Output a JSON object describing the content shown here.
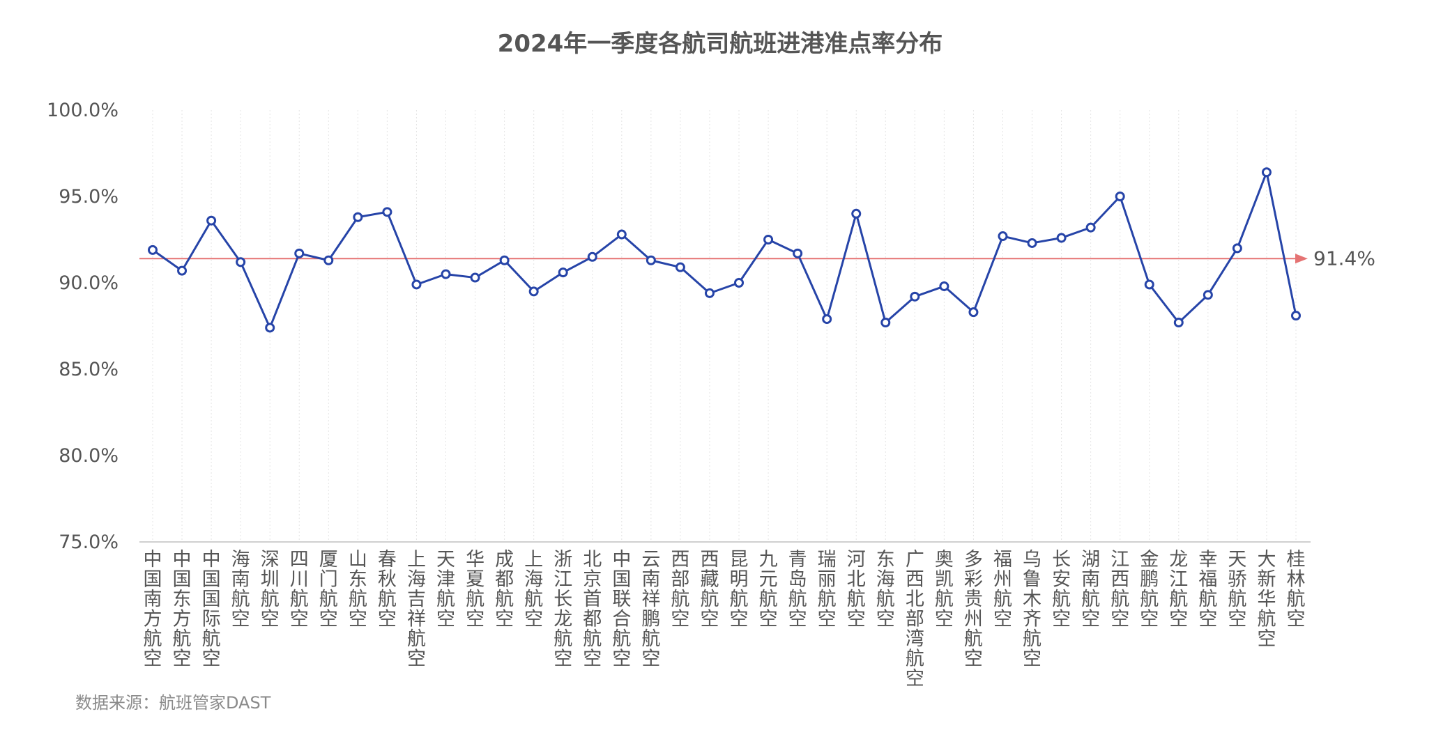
{
  "chart_data": {
    "type": "line",
    "title": "2024年一季度各航司航班进港准点率分布",
    "source": "数据来源：航班管家DAST",
    "xlabel": "",
    "ylabel": "",
    "ylim": [
      75.0,
      100.0
    ],
    "yticks": [
      "75.0%",
      "80.0%",
      "85.0%",
      "90.0%",
      "95.0%",
      "100.0%"
    ],
    "grid": {
      "horizontal": false,
      "vertical": true
    },
    "colors": {
      "line": "#2644a8",
      "marker_fill": "#ffffff",
      "reference": "#e57373",
      "text": "#555555"
    },
    "categories": [
      "中国南方航空",
      "中国东方航空",
      "中国国际航空",
      "海南航空",
      "深圳航空",
      "四川航空",
      "厦门航空",
      "山东航空",
      "春秋航空",
      "上海吉祥航空",
      "天津航空",
      "华夏航空",
      "成都航空",
      "上海航空",
      "浙江长龙航空",
      "北京首都航空",
      "中国联合航空",
      "云南祥鹏航空",
      "西部航空",
      "西藏航空",
      "昆明航空",
      "九元航空",
      "青岛航空",
      "瑞丽航空",
      "河北航空",
      "东海航空",
      "广西北部湾航空",
      "奥凯航空",
      "多彩贵州航空",
      "福州航空",
      "乌鲁木齐航空",
      "长安航空",
      "湖南航空",
      "江西航空",
      "金鹏航空",
      "龙江航空",
      "幸福航空",
      "天骄航空",
      "大新华航空",
      "桂林航空"
    ],
    "series": [
      {
        "values": [
          91.9,
          90.7,
          93.6,
          91.2,
          87.4,
          91.7,
          91.3,
          93.8,
          94.1,
          89.9,
          90.5,
          90.3,
          91.3,
          89.5,
          90.6,
          91.5,
          92.8,
          91.3,
          90.9,
          89.4,
          90.0,
          92.5,
          91.7,
          87.9,
          94.0,
          87.7,
          89.2,
          89.8,
          88.3,
          92.7,
          92.3,
          92.6,
          93.2,
          95.0,
          89.9,
          87.7,
          89.3,
          92.0,
          96.4,
          88.1
        ]
      }
    ],
    "reference_line": {
      "value": 91.4,
      "label": "91.4%"
    }
  }
}
